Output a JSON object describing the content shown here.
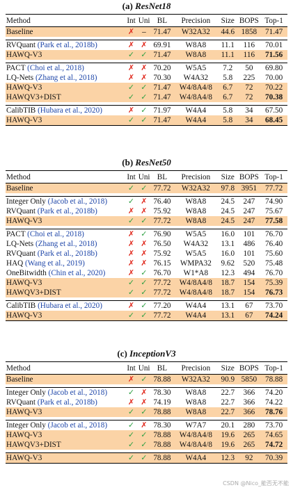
{
  "tables": [
    {
      "caption": {
        "label": "(a)",
        "name": "ResNet18"
      },
      "header": [
        "Method",
        "Int",
        "Uni",
        "BL",
        "Precision",
        "Size",
        "BOPS",
        "Top-1"
      ],
      "groups": [
        [
          {
            "method": "Baseline",
            "cells": [
              "✗",
              "–",
              "71.47",
              "W32A32",
              "44.6",
              "1858",
              "71.47"
            ],
            "highlight": true
          }
        ],
        [
          {
            "method": "RVQuant",
            "cite": "(Park et al., 2018b)",
            "cells": [
              "✗",
              "✗",
              "69.91",
              "W8A8",
              "11.1",
              "116",
              "70.01"
            ]
          },
          {
            "method": "HAWQ-V3",
            "cells": [
              "✓",
              "✓",
              "71.47",
              "W8A8",
              "11.1",
              "116",
              "71.56"
            ],
            "highlight": true,
            "bold": true
          }
        ],
        [
          {
            "method": "PACT",
            "cite": "(Choi et al., 2018)",
            "cells": [
              "✗",
              "✗",
              "70.20",
              "W5A5",
              "7.2",
              "50",
              "69.80"
            ]
          },
          {
            "method": "LQ-Nets",
            "cite": "(Zhang et al., 2018)",
            "cells": [
              "✗",
              "✗",
              "70.30",
              "W4A32",
              "5.8",
              "225",
              "70.00"
            ]
          },
          {
            "method": "HAWQ-V3",
            "cells": [
              "✓",
              "✓",
              "71.47",
              "W4/8A4/8",
              "6.7",
              "72",
              "70.22"
            ],
            "highlight": true
          },
          {
            "method": "HAWQV3+DIST",
            "cells": [
              "✓",
              "✓",
              "71.47",
              "W4/8A4/8",
              "6.7",
              "72",
              "70.38"
            ],
            "highlight": true,
            "bold": true
          }
        ],
        [
          {
            "method": "CalibTIB",
            "cite": "(Hubara et al., 2020)",
            "cells": [
              "✗",
              "✓",
              "71.97",
              "W4A4",
              "5.8",
              "34",
              "67.50"
            ]
          },
          {
            "method": "HAWQ-V3",
            "cells": [
              "✓",
              "✓",
              "71.47",
              "W4A4",
              "5.8",
              "34",
              "68.45"
            ],
            "highlight": true,
            "bold": true
          }
        ]
      ]
    },
    {
      "caption": {
        "label": "(b)",
        "name": "ResNet50"
      },
      "header": [
        "Method",
        "Int",
        "Uni",
        "BL",
        "Precision",
        "Size",
        "BOPS",
        "Top-1"
      ],
      "groups": [
        [
          {
            "method": "Baseline",
            "cells": [
              "✓",
              "✓",
              "77.72",
              "W32A32",
              "97.8",
              "3951",
              "77.72"
            ],
            "highlight": true
          }
        ],
        [
          {
            "method": "Integer Only",
            "cite": "(Jacob et al., 2018)",
            "cells": [
              "✓",
              "✗",
              "76.40",
              "W8A8",
              "24.5",
              "247",
              "74.90"
            ]
          },
          {
            "method": "RVQuant",
            "cite": "(Park et al., 2018b)",
            "cells": [
              "✗",
              "✗",
              "75.92",
              "W8A8",
              "24.5",
              "247",
              "75.67"
            ]
          },
          {
            "method": "HAWQ-V3",
            "cells": [
              "✓",
              "✓",
              "77.72",
              "W8A8",
              "24.5",
              "247",
              "77.58"
            ],
            "highlight": true,
            "bold": true
          }
        ],
        [
          {
            "method": "PACT",
            "cite": "(Choi et al., 2018)",
            "cells": [
              "✗",
              "✓",
              "76.90",
              "W5A5",
              "16.0",
              "101",
              "76.70"
            ]
          },
          {
            "method": "LQ-Nets",
            "cite": "(Zhang et al., 2018)",
            "cells": [
              "✗",
              "✗",
              "76.50",
              "W4A32",
              "13.1",
              "486",
              "76.40"
            ]
          },
          {
            "method": "RVQuant",
            "cite": "(Park et al., 2018b)",
            "cells": [
              "✗",
              "✗",
              "75.92",
              "W5A5",
              "16.0",
              "101",
              "75.60"
            ]
          },
          {
            "method": "HAQ",
            "cite": "(Wang et al., 2019)",
            "cells": [
              "✗",
              "✗",
              "76.15",
              "WMPA32",
              "9.62",
              "520",
              "75.48"
            ]
          },
          {
            "method": "OneBitwidth",
            "cite": "(Chin et al., 2020)",
            "cells": [
              "✗",
              "✓",
              "76.70",
              "W1*A8",
              "12.3",
              "494",
              "76.70"
            ]
          },
          {
            "method": "HAWQ-V3",
            "cells": [
              "✓",
              "✓",
              "77.72",
              "W4/8A4/8",
              "18.7",
              "154",
              "75.39"
            ],
            "highlight": true
          },
          {
            "method": "HAWQV3+DIST",
            "cells": [
              "✓",
              "✓",
              "77.72",
              "W4/8A4/8",
              "18.7",
              "154",
              "76.73"
            ],
            "highlight": true,
            "bold": true
          }
        ],
        [
          {
            "method": "CalibTIB",
            "cite": "(Hubara et al., 2020)",
            "cells": [
              "✗",
              "✓",
              "77.20",
              "W4A4",
              "13.1",
              "67",
              "73.70"
            ]
          },
          {
            "method": "HAWQ-V3",
            "cells": [
              "✓",
              "✓",
              "77.72",
              "W4A4",
              "13.1",
              "67",
              "74.24"
            ],
            "highlight": true,
            "bold": true
          }
        ]
      ]
    },
    {
      "caption": {
        "label": "(c)",
        "name": "InceptionV3"
      },
      "header": [
        "Method",
        "Int",
        "Uni",
        "BL",
        "Precision",
        "Size",
        "BOPS",
        "Top-1"
      ],
      "groups": [
        [
          {
            "method": "Baseline",
            "cells": [
              "✗",
              "✓",
              "78.88",
              "W32A32",
              "90.9",
              "5850",
              "78.88"
            ],
            "highlight": true
          }
        ],
        [
          {
            "method": "Integer Only",
            "cite": "(Jacob et al., 2018)",
            "cells": [
              "✓",
              "✗",
              "78.30",
              "W8A8",
              "22.7",
              "366",
              "74.20"
            ]
          },
          {
            "method": "RVQuant",
            "cite": "(Park et al., 2018b)",
            "cells": [
              "✗",
              "✗",
              "74.19",
              "W8A8",
              "22.7",
              "366",
              "74.22"
            ]
          },
          {
            "method": "HAWQ-V3",
            "cells": [
              "✓",
              "✓",
              "78.88",
              "W8A8",
              "22.7",
              "366",
              "78.76"
            ],
            "highlight": true,
            "bold": true
          }
        ],
        [
          {
            "method": "Integer Only",
            "cite": "(Jacob et al., 2018)",
            "cells": [
              "✓",
              "✗",
              "78.30",
              "W7A7",
              "20.1",
              "280",
              "73.70"
            ]
          },
          {
            "method": "HAWQ-V3",
            "cells": [
              "✓",
              "✓",
              "78.88",
              "W4/8A4/8",
              "19.6",
              "265",
              "74.65"
            ],
            "highlight": true
          },
          {
            "method": "HAWQV3+DIST",
            "cells": [
              "✓",
              "✓",
              "78.88",
              "W4/8A4/8",
              "19.6",
              "265",
              "74.72"
            ],
            "highlight": true,
            "bold": true
          }
        ],
        [
          {
            "method": "HAWQ-V3",
            "cells": [
              "✓",
              "✓",
              "78.88",
              "W4A4",
              "12.3",
              "92",
              "70.39"
            ],
            "highlight": true
          }
        ]
      ]
    }
  ],
  "mark_colors": {
    "✓": "#2ea043",
    "✗": "#e0281c",
    "–": "#000000"
  },
  "highlight_color": "#fbd3a6",
  "cite_color": "#1d45a8",
  "watermark": "CSDN @Nico_能否无不能"
}
